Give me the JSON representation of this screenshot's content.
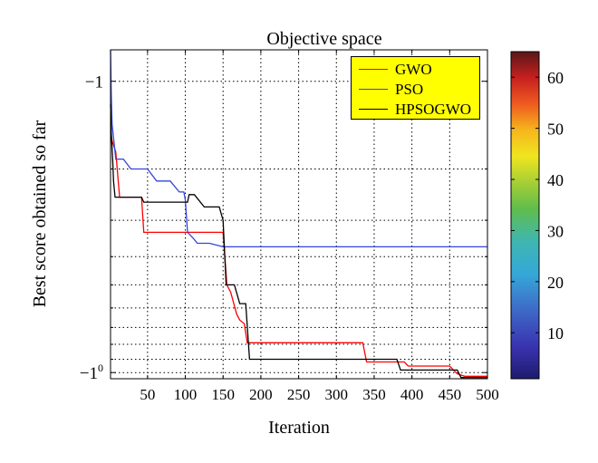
{
  "chart_data": {
    "type": "line",
    "title": "Objective space",
    "xlabel": "Iteration",
    "ylabel": "Best score obtained so far",
    "y_scale": "log",
    "xlim": [
      1,
      500
    ],
    "ylim": [
      -10.5,
      -0.78
    ],
    "grid": true,
    "legend_placement": "top-right",
    "x_ticks": [
      50,
      100,
      150,
      200,
      250,
      300,
      350,
      400,
      450,
      500
    ],
    "y_tick_labels": [
      "−1",
      "−10"
    ],
    "series": [
      {
        "name": "GWO",
        "color": "#ff0000",
        "points": [
          [
            1,
            -1.5
          ],
          [
            3,
            -1.6
          ],
          [
            8,
            -1.75
          ],
          [
            13,
            -2.5
          ],
          [
            42,
            -2.5
          ],
          [
            45,
            -3.3
          ],
          [
            98,
            -3.3
          ],
          [
            100,
            -3.3
          ],
          [
            112,
            -3.3
          ],
          [
            150,
            -3.3
          ],
          [
            155,
            -5
          ],
          [
            160,
            -5.3
          ],
          [
            168,
            -6.3
          ],
          [
            172,
            -6.6
          ],
          [
            178,
            -6.8
          ],
          [
            182,
            -7.9
          ],
          [
            335,
            -7.9
          ],
          [
            340,
            -9.2
          ],
          [
            390,
            -9.2
          ],
          [
            395,
            -9.5
          ],
          [
            450,
            -9.5
          ],
          [
            455,
            -9.8
          ],
          [
            460,
            -10.1
          ],
          [
            470,
            -10.3
          ],
          [
            500,
            -10.3
          ]
        ]
      },
      {
        "name": "PSO",
        "color": "#3344dd",
        "points": [
          [
            1,
            -0.78
          ],
          [
            2,
            -1.1
          ],
          [
            3,
            -1.4
          ],
          [
            8,
            -1.85
          ],
          [
            18,
            -1.85
          ],
          [
            28,
            -2.0
          ],
          [
            50,
            -2.0
          ],
          [
            62,
            -2.2
          ],
          [
            80,
            -2.2
          ],
          [
            92,
            -2.4
          ],
          [
            98,
            -2.4
          ],
          [
            100,
            -2.55
          ],
          [
            103,
            -3.3
          ],
          [
            110,
            -3.45
          ],
          [
            116,
            -3.6
          ],
          [
            132,
            -3.6
          ],
          [
            150,
            -3.7
          ],
          [
            500,
            -3.7
          ]
        ]
      },
      {
        "name": "HPSOGWO",
        "color": "#000000",
        "points": [
          [
            1,
            -1.2
          ],
          [
            2,
            -1.5
          ],
          [
            4,
            -1.9
          ],
          [
            5,
            -2.2
          ],
          [
            7,
            -2.5
          ],
          [
            42,
            -2.5
          ],
          [
            45,
            -2.6
          ],
          [
            57,
            -2.6
          ],
          [
            85,
            -2.6
          ],
          [
            103,
            -2.6
          ],
          [
            105,
            -2.45
          ],
          [
            112,
            -2.45
          ],
          [
            125,
            -2.7
          ],
          [
            145,
            -2.7
          ],
          [
            150,
            -3.0
          ],
          [
            154,
            -5.0
          ],
          [
            165,
            -5.0
          ],
          [
            172,
            -5.8
          ],
          [
            180,
            -5.8
          ],
          [
            185,
            -9.0
          ],
          [
            380,
            -9.0
          ],
          [
            385,
            -9.8
          ],
          [
            460,
            -9.8
          ],
          [
            465,
            -10.4
          ],
          [
            500,
            -10.4
          ]
        ]
      }
    ],
    "colorbar": {
      "ticks": [
        10,
        20,
        30,
        40,
        50,
        60
      ],
      "range": [
        1,
        65
      ]
    }
  }
}
